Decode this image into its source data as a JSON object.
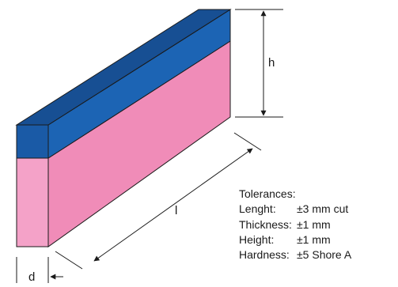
{
  "colors": {
    "top_face": "#1a5aa6",
    "top_face_dark": "#174f93",
    "upper_front": "#1c64b4",
    "side_face": "#f08cb8",
    "front_face": "#f4a2c8",
    "outline": "#1a1a1a"
  },
  "dimensions": {
    "height_label": "h",
    "length_label": "l",
    "depth_label": "d"
  },
  "tolerances": {
    "title": "Tolerances:",
    "rows": [
      {
        "name": "Lenght:",
        "value": "±3 mm cut"
      },
      {
        "name": "Thickness:",
        "value": "±1 mm"
      },
      {
        "name": "Height:",
        "value": "±1 mm"
      },
      {
        "name": "Hardness:",
        "value": "±5 Shore A"
      }
    ]
  }
}
